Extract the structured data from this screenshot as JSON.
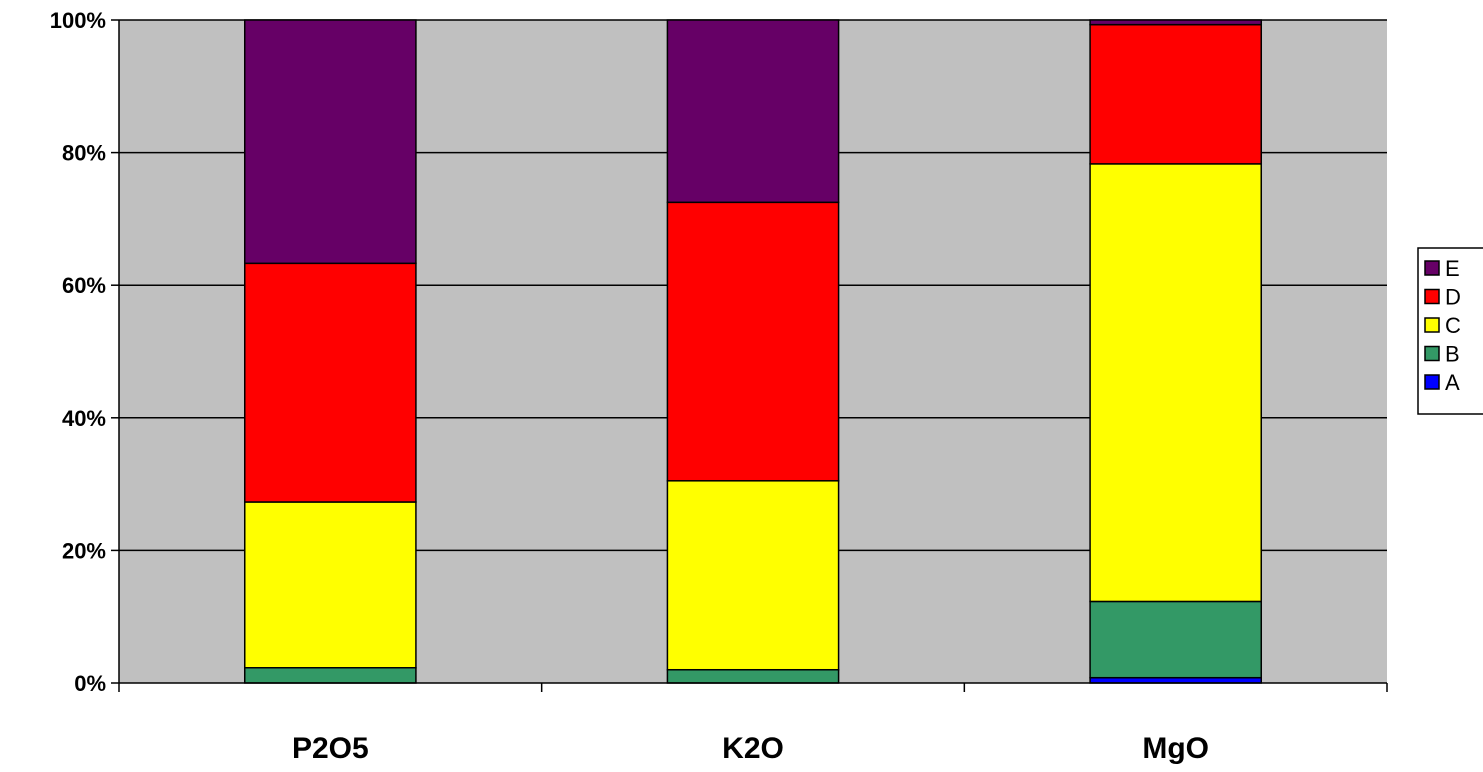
{
  "chart_data": {
    "type": "bar",
    "stacked": true,
    "percent": true,
    "categories": [
      "P2O5",
      "K2O",
      "MgO"
    ],
    "series": [
      {
        "name": "A",
        "color": "#0000FF",
        "values": [
          0,
          0,
          0.8
        ]
      },
      {
        "name": "B",
        "color": "#339966",
        "values": [
          2.3,
          2.0,
          11.5
        ]
      },
      {
        "name": "C",
        "color": "#FFFF00",
        "values": [
          25.0,
          28.5,
          66.0
        ]
      },
      {
        "name": "D",
        "color": "#FF0000",
        "values": [
          36.0,
          42.0,
          21.0
        ]
      },
      {
        "name": "E",
        "color": "#660066",
        "values": [
          36.7,
          27.5,
          0.7
        ]
      }
    ],
    "yticks": [
      "0%",
      "20%",
      "40%",
      "60%",
      "80%",
      "100%"
    ],
    "ylim": [
      0,
      100
    ],
    "grid": true,
    "plot_background": "#C0C0C0",
    "legend": {
      "position": "right",
      "order": [
        "E",
        "D",
        "C",
        "B",
        "A"
      ]
    },
    "title": "",
    "xlabel": "",
    "ylabel": ""
  }
}
